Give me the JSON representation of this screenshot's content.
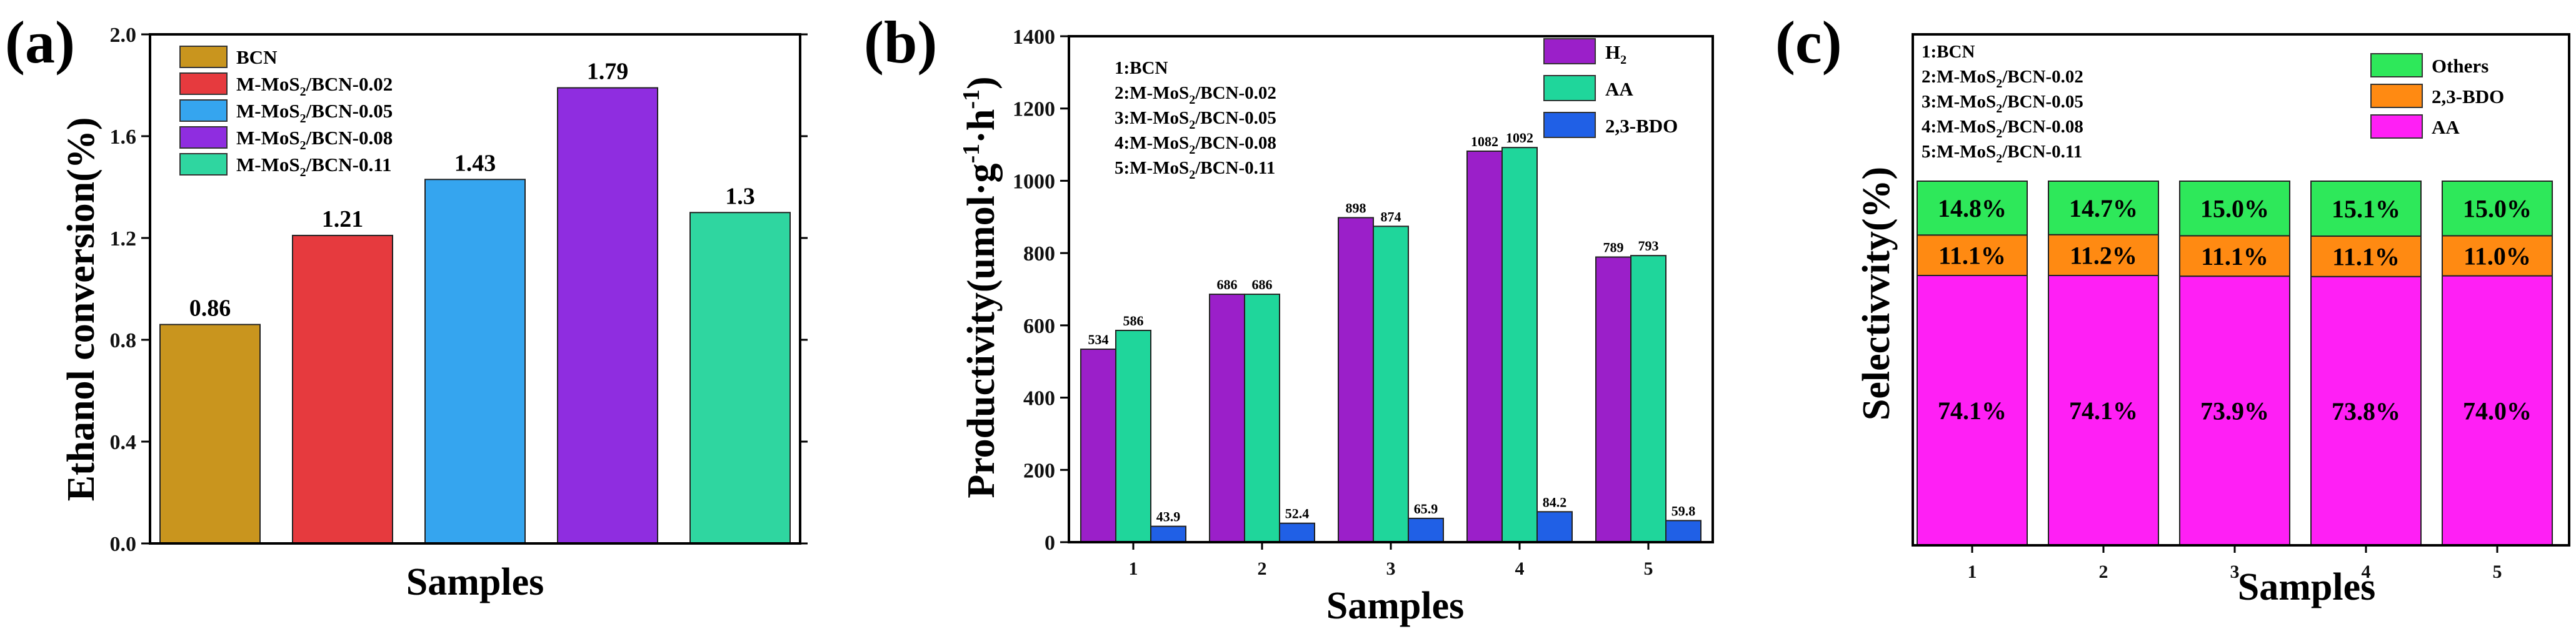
{
  "chart_data": [
    {
      "type": "bar",
      "panel_label": "(a)",
      "xlabel": "Samples",
      "ylabel": "Ethanol conversion(%)",
      "ylim": [
        0.0,
        2.0
      ],
      "yticks": [
        "0.0",
        "0.4",
        "0.8",
        "1.2",
        "1.6",
        "2.0"
      ],
      "categories": [
        "BCN",
        "M-MoS2/BCN-0.02",
        "M-MoS2/BCN-0.05",
        "M-MoS2/BCN-0.08",
        "M-MoS2/BCN-0.11"
      ],
      "values": [
        0.86,
        1.21,
        1.43,
        1.79,
        1.3
      ],
      "value_labels": [
        "0.86",
        "1.21",
        "1.43",
        "1.79",
        "1.3"
      ],
      "legend": [
        {
          "pre": "BCN",
          "sub": "",
          "post": ""
        },
        {
          "pre": "M-MoS",
          "sub": "2",
          "post": "/BCN-0.02"
        },
        {
          "pre": "M-MoS",
          "sub": "2",
          "post": "/BCN-0.05"
        },
        {
          "pre": "M-MoS",
          "sub": "2",
          "post": "/BCN-0.08"
        },
        {
          "pre": "M-MoS",
          "sub": "2",
          "post": "/BCN-0.11"
        }
      ],
      "colors": [
        "#c9951e",
        "#e63a3e",
        "#35a5ef",
        "#8f2de0",
        "#2fd6a0"
      ],
      "legend_position": "top-left",
      "grid": false
    },
    {
      "type": "bar",
      "panel_label": "(b)",
      "xlabel": "Samples",
      "ylabel_pre": "Productivity(umol·g",
      "ylabel_sup1": "-1",
      "ylabel_mid": "·h",
      "ylabel_sup2": "-1",
      "ylabel_post": ")",
      "ylim": [
        0,
        1400
      ],
      "yticks": [
        "0",
        "200",
        "400",
        "600",
        "800",
        "1000",
        "1200",
        "1400"
      ],
      "categories": [
        "1",
        "2",
        "3",
        "4",
        "5"
      ],
      "series": [
        {
          "name": "H2",
          "name_pre": "H",
          "name_sub": "2",
          "values": [
            534,
            686,
            898,
            1082,
            789
          ],
          "labels": [
            "534",
            "686",
            "898",
            "1082",
            "789"
          ],
          "color": "#9b1fc9"
        },
        {
          "name": "AA",
          "name_pre": "AA",
          "name_sub": "",
          "values": [
            586,
            686,
            874,
            1092,
            793
          ],
          "labels": [
            "586",
            "686",
            "874",
            "1092",
            "793"
          ],
          "color": "#1fd69b"
        },
        {
          "name": "2,3-BDO",
          "name_pre": "2,3-BDO",
          "name_sub": "",
          "values": [
            43.9,
            52.4,
            65.9,
            84.2,
            59.8
          ],
          "labels": [
            "43.9",
            "52.4",
            "65.9",
            "84.2",
            "59.8"
          ],
          "color": "#2060e6"
        }
      ],
      "notes": [
        {
          "pre": "1:BCN",
          "sub": "",
          "post": ""
        },
        {
          "pre": "2:M-MoS",
          "sub": "2",
          "post": "/BCN-0.02"
        },
        {
          "pre": "3:M-MoS",
          "sub": "2",
          "post": "/BCN-0.05"
        },
        {
          "pre": "4:M-MoS",
          "sub": "2",
          "post": "/BCN-0.08"
        },
        {
          "pre": "5:M-MoS",
          "sub": "2",
          "post": "/BCN-0.11"
        }
      ],
      "legend_position": "top-right",
      "grid": false
    },
    {
      "type": "bar",
      "stacked": true,
      "panel_label": "(c)",
      "xlabel": "Samples",
      "ylabel": "Selectivvity(%)",
      "ylim": [
        0,
        100
      ],
      "categories": [
        "1",
        "2",
        "3",
        "4",
        "5"
      ],
      "series": [
        {
          "name": "AA",
          "values": [
            74.1,
            74.1,
            73.9,
            73.8,
            74.0
          ],
          "labels": [
            "74.1%",
            "74.1%",
            "73.9%",
            "73.8%",
            "74.0%"
          ],
          "color": "#ff1ff5"
        },
        {
          "name": "2,3-BDO",
          "values": [
            11.1,
            11.2,
            11.1,
            11.1,
            11.0
          ],
          "labels": [
            "11.1%",
            "11.2%",
            "11.1%",
            "11.1%",
            "11.0%"
          ],
          "color": "#ff8a12"
        },
        {
          "name": "Others",
          "values": [
            14.8,
            14.7,
            15.0,
            15.1,
            15.0
          ],
          "labels": [
            "14.8%",
            "14.7%",
            "15.0%",
            "15.1%",
            "15.0%"
          ],
          "color": "#2ee85a"
        }
      ],
      "legend_order": [
        "Others",
        "2,3-BDO",
        "AA"
      ],
      "notes": [
        {
          "pre": "1:BCN",
          "sub": "",
          "post": ""
        },
        {
          "pre": "2:M-MoS",
          "sub": "2",
          "post": "/BCN-0.02"
        },
        {
          "pre": "3:M-MoS",
          "sub": "2",
          "post": "/BCN-0.05"
        },
        {
          "pre": "4:M-MoS",
          "sub": "2",
          "post": "/BCN-0.08"
        },
        {
          "pre": "5:M-MoS",
          "sub": "2",
          "post": "/BCN-0.11"
        }
      ],
      "legend_position": "top-right",
      "grid": false
    }
  ]
}
